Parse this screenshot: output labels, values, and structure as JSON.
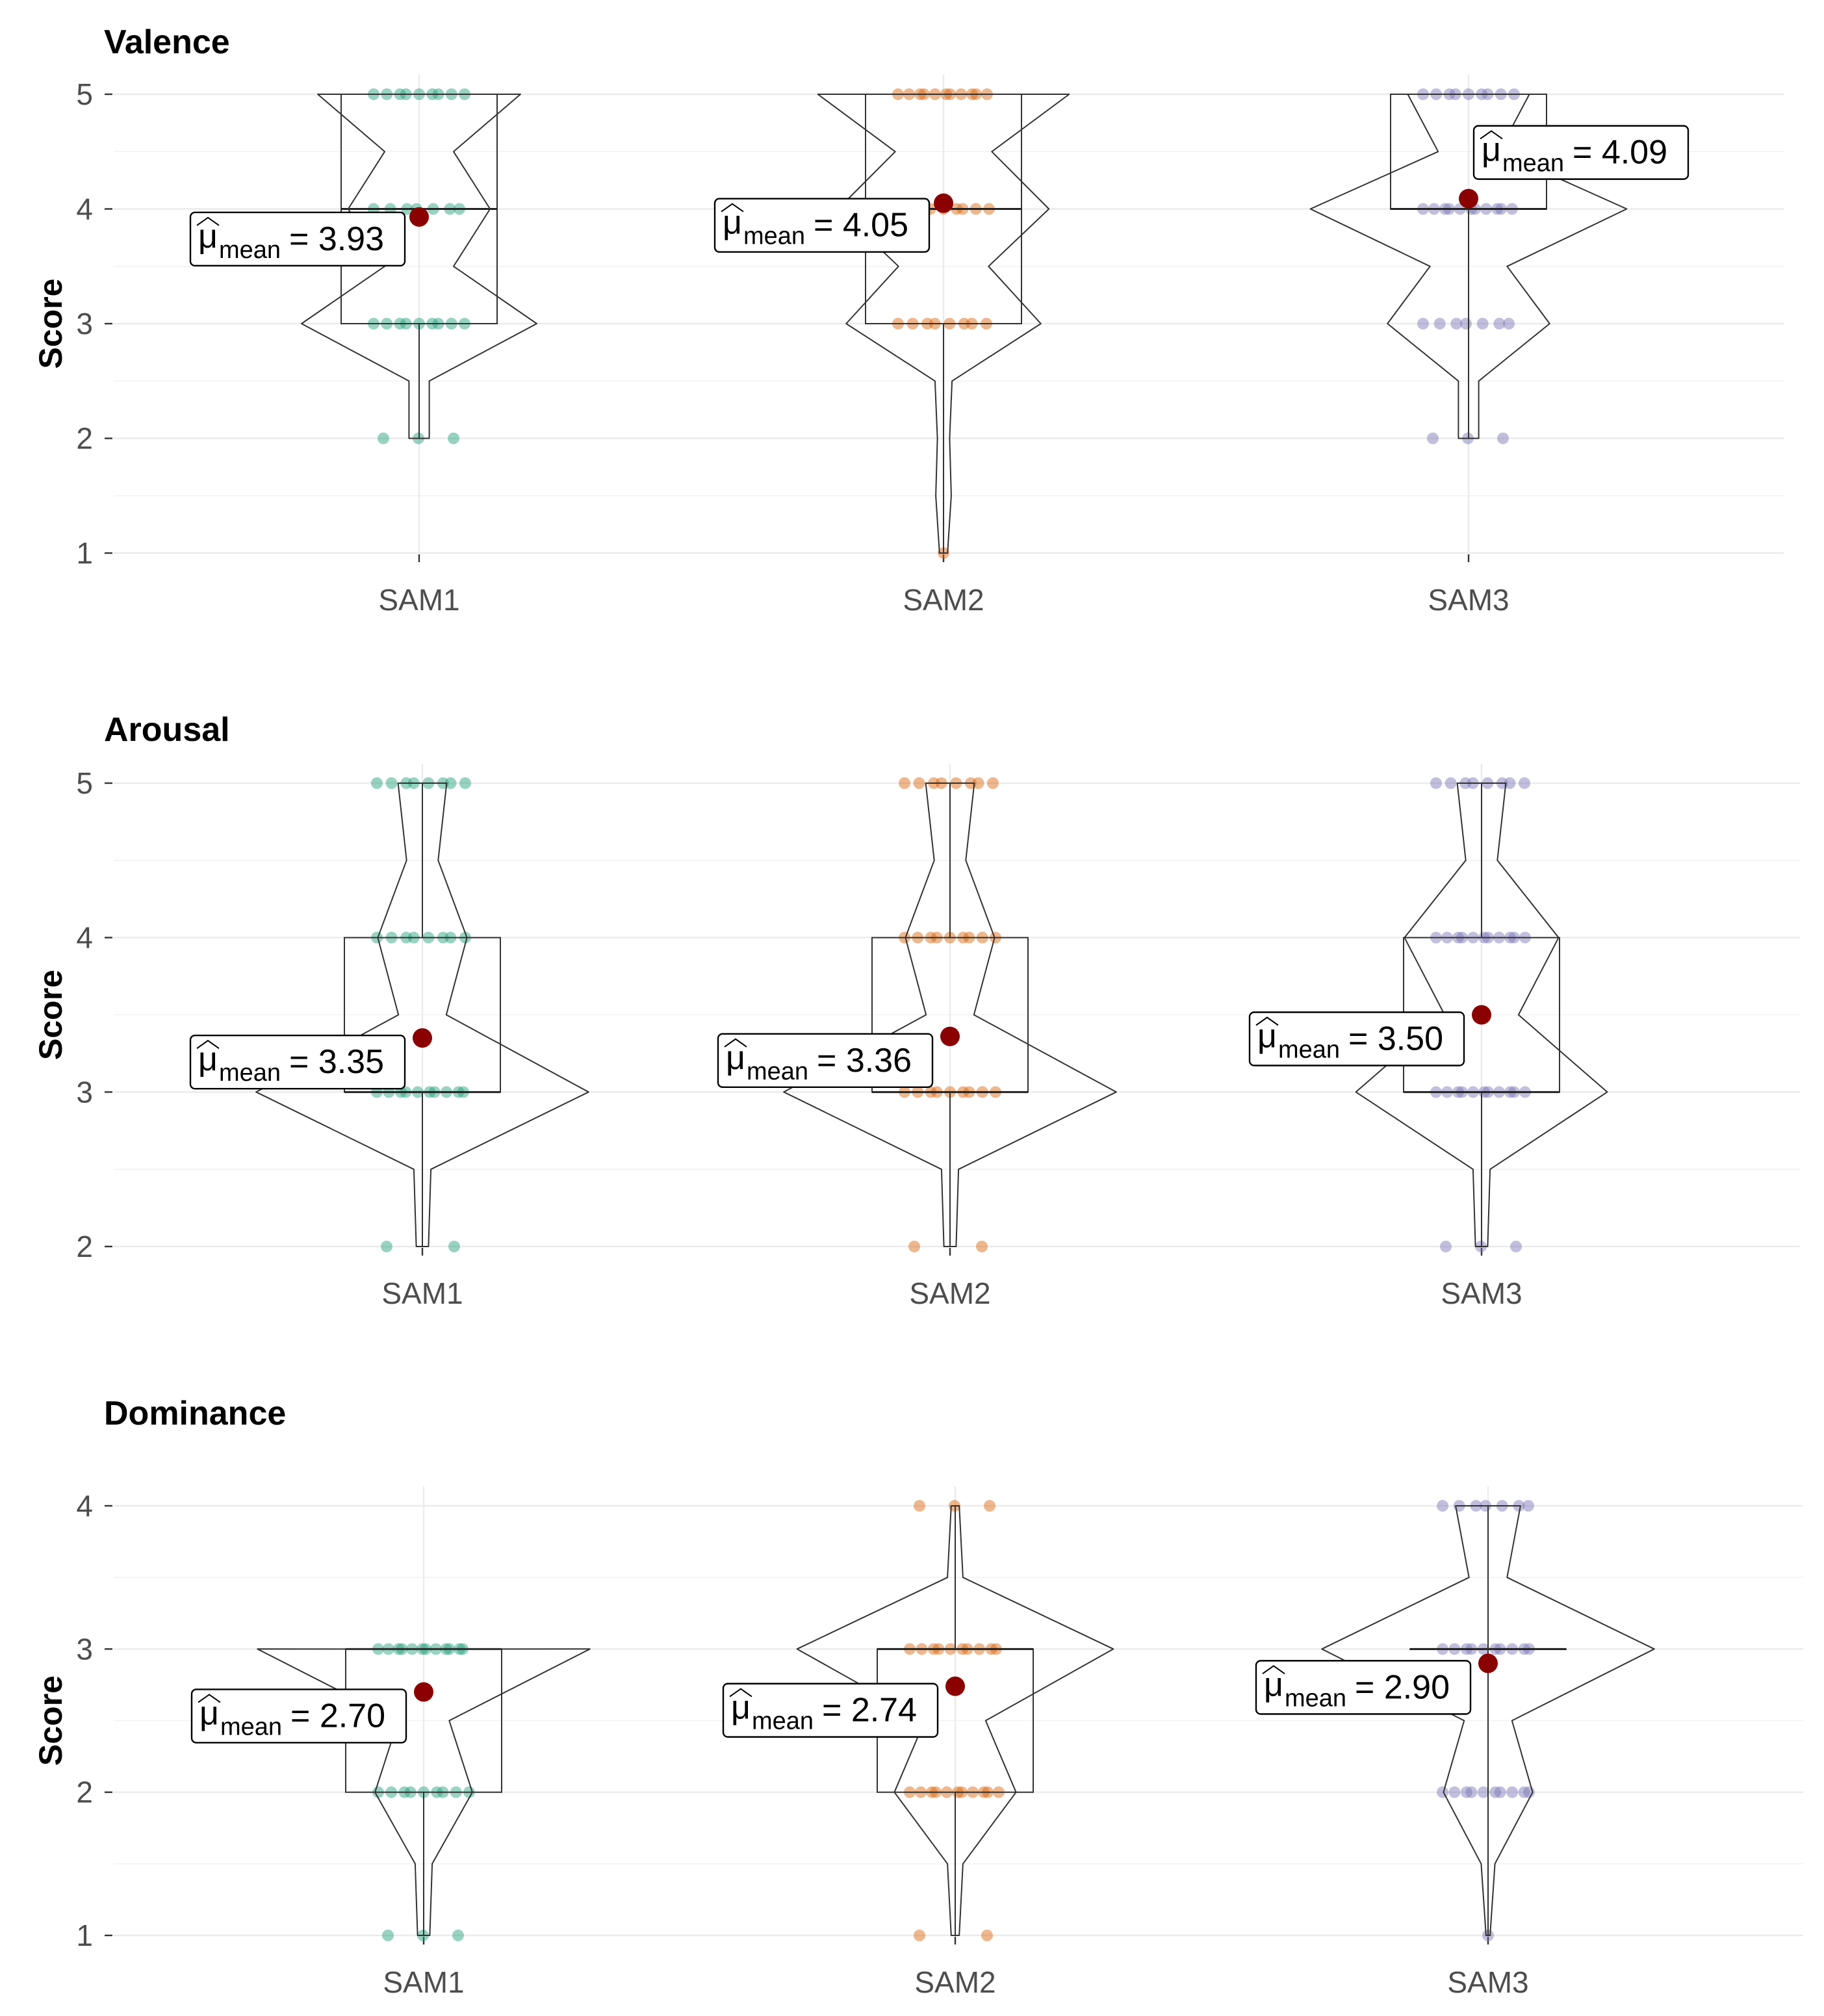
{
  "colors": {
    "SAM1": "#1b9e77",
    "SAM2": "#d95f02",
    "SAM3": "#7570b3",
    "mean_point": "#8b0000"
  },
  "chart_data": [
    {
      "type": "violin-box",
      "title": "Valence",
      "ylabel": "Score",
      "ylim": [
        1,
        5
      ],
      "yticks": [
        "1",
        "2",
        "3",
        "4",
        "5"
      ],
      "categories": [
        "SAM1",
        "SAM2",
        "SAM3"
      ],
      "groups": [
        {
          "name": "SAM1",
          "min": 2,
          "q1": 3,
          "median": 4,
          "q3": 5,
          "max": 5,
          "mean": 3.93,
          "mean_text": "= 3.93",
          "density": {
            "5": 0.5,
            "4": 0.35,
            "3": 0.58,
            "2": 0.05
          },
          "points": {
            "5": 9,
            "4": 7,
            "3": 9,
            "2": 3
          }
        },
        {
          "name": "SAM2",
          "min": 1,
          "q1": 3,
          "median": 4,
          "q3": 5,
          "max": 5,
          "mean": 4.05,
          "mean_text": "= 4.05",
          "density": {
            "5": 0.62,
            "4": 0.52,
            "3": 0.48,
            "2": 0.03,
            "1": 0.02
          },
          "points": {
            "5": 11,
            "4": 9,
            "3": 8,
            "1": 1
          }
        },
        {
          "name": "SAM3",
          "min": 2,
          "q1": 4,
          "median": 4,
          "q3": 5,
          "max": 5,
          "mean": 4.09,
          "mean_text": "= 4.09",
          "density": {
            "5": 0.3,
            "4": 0.78,
            "3": 0.4,
            "2": 0.05
          },
          "points": {
            "5": 9,
            "4": 11,
            "3": 7,
            "2": 3
          }
        }
      ]
    },
    {
      "type": "violin-box",
      "title": "Arousal",
      "ylabel": "Score",
      "ylim": [
        2,
        5
      ],
      "yticks": [
        "2",
        "3",
        "4",
        "5"
      ],
      "categories": [
        "SAM1",
        "SAM2",
        "SAM3"
      ],
      "groups": [
        {
          "name": "SAM1",
          "min": 2,
          "q1": 3,
          "median": 3,
          "q3": 4,
          "max": 5,
          "mean": 3.35,
          "mean_text": "= 3.35",
          "density": {
            "5": 0.12,
            "4": 0.22,
            "3": 0.82,
            "2": 0.03
          },
          "points": {
            "5": 8,
            "4": 8,
            "3": 10,
            "2": 2
          }
        },
        {
          "name": "SAM2",
          "min": 2,
          "q1": 3,
          "median": 3,
          "q3": 4,
          "max": 5,
          "mean": 3.36,
          "mean_text": "= 3.36",
          "density": {
            "5": 0.12,
            "4": 0.22,
            "3": 0.82,
            "2": 0.03
          },
          "points": {
            "5": 8,
            "4": 9,
            "3": 9,
            "2": 2
          }
        },
        {
          "name": "SAM3",
          "min": 2,
          "q1": 3,
          "median": 3,
          "q3": 4,
          "max": 5,
          "mean": 3.5,
          "mean_text": "= 3.50",
          "density": {
            "5": 0.12,
            "4": 0.38,
            "3": 0.62,
            "2": 0.03
          },
          "points": {
            "5": 8,
            "4": 11,
            "3": 11,
            "2": 3
          }
        }
      ]
    },
    {
      "type": "violin-box",
      "title": "Dominance",
      "ylabel": "Score",
      "ylim": [
        1,
        4
      ],
      "yticks": [
        "1",
        "2",
        "3",
        "4"
      ],
      "categories": [
        "SAM1",
        "SAM2",
        "SAM3"
      ],
      "groups": [
        {
          "name": "SAM1",
          "min": 1,
          "q1": 2,
          "median": 3,
          "q3": 3,
          "max": 3,
          "mean": 2.7,
          "mean_text": "= 2.70",
          "density": {
            "3": 0.82,
            "2": 0.24,
            "1": 0.03
          },
          "points": {
            "3": 12,
            "2": 9,
            "1": 3
          }
        },
        {
          "name": "SAM2",
          "min": 1,
          "q1": 2,
          "median": 3,
          "q3": 3,
          "max": 4,
          "mean": 2.74,
          "mean_text": "= 2.74",
          "density": {
            "4": 0.02,
            "3": 0.78,
            "2": 0.3,
            "1": 0.02
          },
          "points": {
            "4": 3,
            "3": 10,
            "2": 11,
            "1": 2
          }
        },
        {
          "name": "SAM3",
          "min": 1,
          "q1": 3,
          "median": 3,
          "q3": 3,
          "max": 4,
          "mean": 2.9,
          "mean_text": "= 2.90",
          "density": {
            "4": 0.16,
            "3": 0.82,
            "2": 0.22,
            "1": 0.01
          },
          "points": {
            "4": 7,
            "3": 10,
            "2": 10,
            "1": 1
          }
        }
      ]
    }
  ]
}
